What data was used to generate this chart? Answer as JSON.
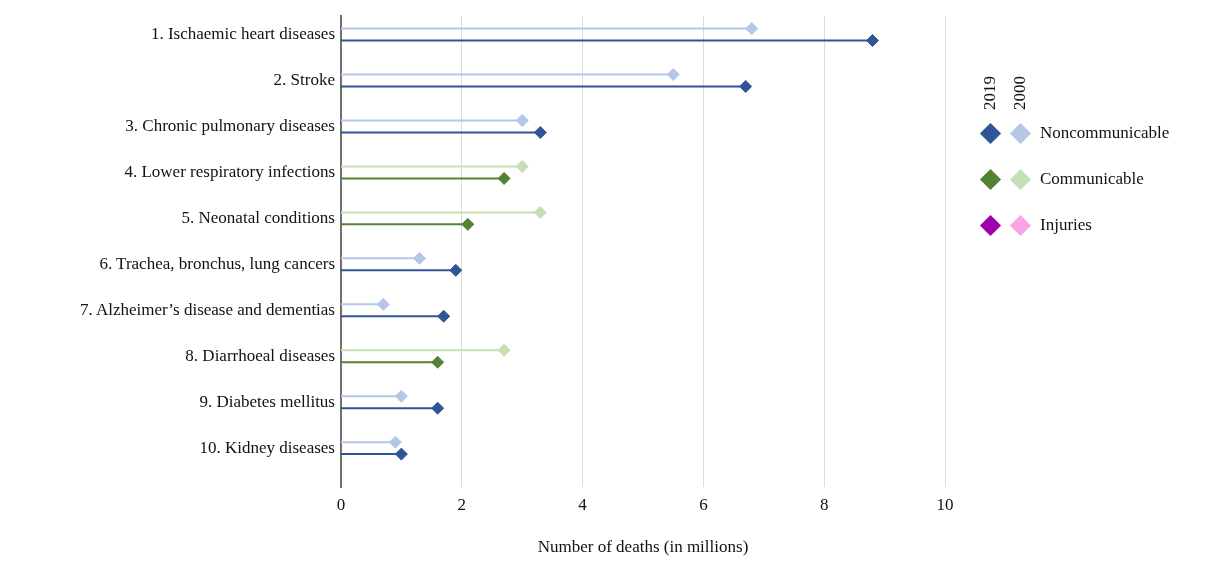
{
  "chart_data": {
    "type": "lollipop",
    "orientation": "horizontal",
    "xlabel": "Number of deaths (in millions)",
    "categories": [
      "1. Ischaemic heart diseases",
      "2. Stroke",
      "3. Chronic pulmonary diseases",
      "4. Lower respiratory infections",
      "5. Neonatal conditions",
      "6. Trachea, bronchus, lung cancers",
      "7. Alzheimer’s disease and dementias",
      "8. Diarrhoeal diseases",
      "9. Diabetes mellitus",
      "10. Kidney diseases"
    ],
    "series": [
      {
        "color": "#2f5597",
        "values": [
          8.8,
          6.7,
          3.3,
          null,
          null,
          1.9,
          1.7,
          null,
          1.6,
          1.0
        ]
      },
      {
        "name": "Noncommunicable",
        "color": "#b4c7e7",
        "values": [
          6.8,
          5.5,
          3.0,
          null,
          null,
          1.3,
          0.7,
          null,
          1.0,
          0.9
        ]
      },
      {
        "color": "#548235",
        "values": [
          null,
          null,
          null,
          2.7,
          2.1,
          null,
          null,
          1.6,
          null,
          null
        ]
      },
      {
        "name": "Communicable",
        "color": "#c5e0b4",
        "values": [
          null,
          null,
          null,
          3.0,
          3.3,
          null,
          null,
          2.7,
          null,
          null
        ]
      },
      {
        "color": "#a000a8",
        "values": [
          null,
          null,
          null,
          null,
          null,
          null,
          null,
          null,
          null,
          null
        ]
      },
      {
        "name": "Injuries",
        "color": "#f9a3e8",
        "values": [
          null,
          null,
          null,
          null,
          null,
          null,
          null,
          null,
          null,
          null
        ]
      }
    ],
    "annotations": [
      "2019",
      "2000"
    ],
    "xlim": [
      0,
      10
    ],
    "xticks": [
      0,
      2,
      4,
      6,
      8,
      10
    ],
    "grid": "x",
    "legend": "right",
    "marker": "diamond"
  }
}
